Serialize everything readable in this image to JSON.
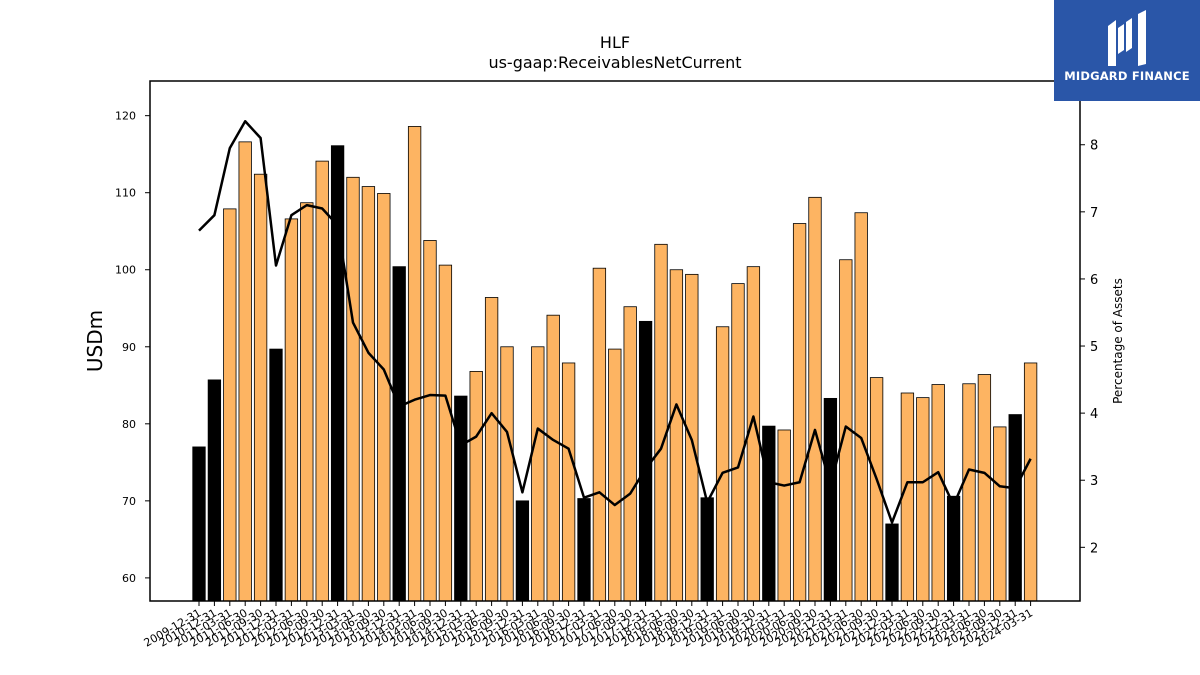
{
  "brand": {
    "name": "MIDGARD FINANCE",
    "logo_icon": "midgard-logo-icon",
    "background": "#2a56a8"
  },
  "colors": {
    "bar_fill": "#fdb462",
    "bar_highlight": "#000000",
    "line": "#000000"
  },
  "chart_data": {
    "type": "bar",
    "title": "HLF",
    "subtitle": "us-gaap:ReceivablesNetCurrent",
    "ylabel": "USDm",
    "y2label": "Percentage of Assets",
    "ylim": [
      57,
      124.5
    ],
    "y2lim": [
      1.2,
      8.95
    ],
    "yticks": [
      60,
      70,
      80,
      90,
      100,
      110,
      120
    ],
    "y2ticks": [
      2,
      3,
      4,
      5,
      6,
      7,
      8
    ],
    "grid": false,
    "categories": [
      "2009-12-31",
      "2010-12-31",
      "2011-03-31",
      "2011-06-30",
      "2011-09-30",
      "2011-12-31",
      "2012-03-31",
      "2012-06-30",
      "2012-09-30",
      "2012-12-31",
      "2013-03-31",
      "2013-06-30",
      "2013-09-30",
      "2013-12-31",
      "2014-03-31",
      "2014-06-30",
      "2014-09-30",
      "2014-12-31",
      "2015-03-31",
      "2015-06-30",
      "2015-09-30",
      "2015-12-31",
      "2016-03-31",
      "2016-06-30",
      "2016-09-30",
      "2016-12-31",
      "2017-03-31",
      "2017-06-30",
      "2017-09-30",
      "2017-12-31",
      "2018-03-31",
      "2018-06-30",
      "2018-09-30",
      "2018-12-31",
      "2019-03-31",
      "2019-06-30",
      "2019-09-30",
      "2019-12-31",
      "2020-03-31",
      "2020-06-30",
      "2020-09-30",
      "2020-12-31",
      "2021-03-31",
      "2021-06-30",
      "2021-09-30",
      "2021-12-31",
      "2022-03-31",
      "2022-06-30",
      "2022-09-30",
      "2022-12-31",
      "2023-03-31",
      "2023-06-30",
      "2023-09-30",
      "2023-12-31",
      "2024-03-31"
    ],
    "series": [
      {
        "type": "bar",
        "values": [
          77.0,
          85.7,
          107.9,
          116.6,
          112.4,
          89.7,
          106.6,
          108.7,
          114.1,
          116.1,
          112.0,
          110.8,
          109.9,
          100.4,
          118.6,
          103.8,
          100.6,
          83.6,
          86.8,
          96.4,
          90.0,
          70.0,
          90.0,
          94.1,
          87.9,
          70.3,
          100.2,
          89.7,
          95.2,
          93.3,
          103.3,
          100.0,
          99.4,
          70.4,
          92.6,
          98.2,
          100.4,
          79.7,
          79.2,
          106.0,
          109.4,
          83.3,
          101.3,
          107.4,
          86.0,
          67.0,
          84.0,
          83.4,
          85.1,
          70.6,
          85.2,
          86.4,
          79.6,
          81.2,
          87.9
        ],
        "highlight": [
          true,
          true,
          false,
          false,
          false,
          true,
          false,
          false,
          false,
          true,
          false,
          false,
          false,
          true,
          false,
          false,
          false,
          true,
          false,
          false,
          false,
          true,
          false,
          false,
          false,
          true,
          false,
          false,
          false,
          true,
          false,
          false,
          false,
          true,
          false,
          false,
          false,
          true,
          false,
          false,
          false,
          true,
          false,
          false,
          false,
          true,
          false,
          false,
          false,
          true,
          false,
          false,
          false,
          true,
          false
        ]
      },
      {
        "type": "line",
        "axis": "right",
        "values": [
          6.72,
          6.95,
          7.95,
          8.35,
          8.1,
          6.2,
          6.95,
          7.1,
          7.05,
          6.8,
          5.35,
          4.9,
          4.65,
          4.1,
          4.2,
          4.27,
          4.26,
          3.52,
          3.65,
          4.0,
          3.72,
          2.82,
          3.77,
          3.6,
          3.47,
          2.74,
          2.82,
          2.63,
          2.8,
          3.17,
          3.47,
          4.13,
          3.6,
          2.67,
          3.11,
          3.19,
          3.95,
          2.97,
          2.92,
          2.97,
          3.75,
          2.93,
          3.8,
          3.63,
          3.02,
          2.37,
          2.97,
          2.97,
          3.12,
          2.63,
          3.16,
          3.11,
          2.91,
          2.88,
          3.32
        ]
      }
    ]
  }
}
